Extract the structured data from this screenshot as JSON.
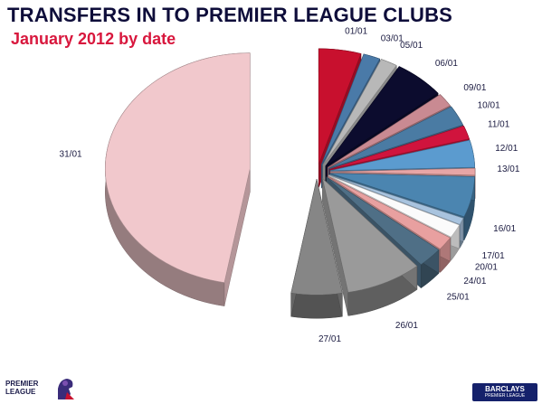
{
  "title": "TRANSFERS IN TO PREMIER LEAGUE CLUBS",
  "subtitle": "January 2012 by date",
  "chart_data": {
    "type": "pie",
    "title": "TRANSFERS IN TO PREMIER LEAGUE CLUBS",
    "subtitle": "January 2012 by date",
    "style": "3d-exploded",
    "categories": [
      "01/01",
      "03/01",
      "05/01",
      "06/01",
      "09/01",
      "10/01",
      "11/01",
      "12/01",
      "13/01",
      "16/01",
      "17/01",
      "20/01",
      "24/01",
      "25/01",
      "26/01",
      "27/01",
      "31/01"
    ],
    "values": [
      5,
      2,
      2,
      6,
      2,
      3,
      2,
      4,
      1,
      6,
      1,
      2,
      2,
      3,
      9,
      6,
      50
    ],
    "colors": [
      "#c8102e",
      "#4a7aa8",
      "#b8b8b8",
      "#0c0c2e",
      "#c98a92",
      "#4a7ba3",
      "#d0143d",
      "#5b9bcf",
      "#e8a6a6",
      "#4b85b0",
      "#a8c3de",
      "#fbfbfb",
      "#e8a0a0",
      "#4f6f86",
      "#9a9a9a",
      "#868686",
      "#f1c8cc"
    ]
  },
  "logos": {
    "league_line1": "PREMIER",
    "league_line2": "LEAGUE",
    "sponsor_brand": "BARCLAYS",
    "sponsor_sub": "PREMIER LEAGUE"
  }
}
